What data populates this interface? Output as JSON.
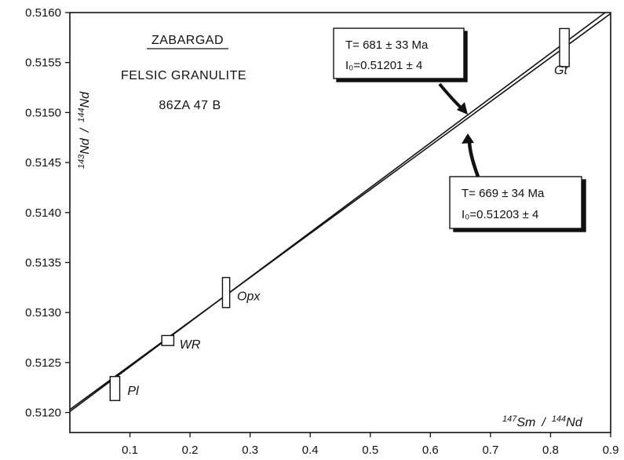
{
  "chart_data": {
    "type": "scatter",
    "title_lines": [
      "ZABARGAD",
      "FELSIC GRANULITE",
      "86ZA 47 B"
    ],
    "xlabel": {
      "iso1": "147",
      "el1": "Sm",
      "sep": "/",
      "iso2": "144",
      "el2": "Nd"
    },
    "ylabel": {
      "iso1": "143",
      "el1": "Nd",
      "sep": "/",
      "iso2": "144",
      "el2": "Nd"
    },
    "xlim": [
      0.0,
      0.9
    ],
    "ylim": [
      0.5118,
      0.516
    ],
    "x_ticks": [
      0.1,
      0.2,
      0.3,
      0.4,
      0.5,
      0.6,
      0.7,
      0.8,
      0.9
    ],
    "x_tick_labels": [
      "0.1",
      "0.2",
      "0.3",
      "0.4",
      "0.5",
      "0.6",
      "0.7",
      "0.8",
      "0.9"
    ],
    "y_ticks": [
      0.512,
      0.5125,
      0.513,
      0.5135,
      0.514,
      0.5145,
      0.515,
      0.5155,
      0.516
    ],
    "y_tick_labels": [
      "0.5120",
      "0.5125",
      "0.5130",
      "0.5135",
      "0.5140",
      "0.5145",
      "0.5150",
      "0.5155",
      "0.5160"
    ],
    "points": [
      {
        "label": "Pl",
        "x": 0.075,
        "y": 0.51224,
        "dx": 0.008,
        "dy": 0.00012
      },
      {
        "label": "WR",
        "x": 0.163,
        "y": 0.51272,
        "dx": 0.01,
        "dy": 5e-05
      },
      {
        "label": "Opx",
        "x": 0.26,
        "y": 0.5132,
        "dx": 0.006,
        "dy": 0.00015
      },
      {
        "label": "Gt",
        "x": 0.823,
        "y": 0.51565,
        "dx": 0.008,
        "dy": 0.00019
      }
    ],
    "isochrons": [
      {
        "label_lines": [
          "T= 681 ± 33 Ma",
          "I₀=0.51201 ± 4"
        ],
        "intercept": 0.51201,
        "slope": 0.004479
      },
      {
        "label_lines": [
          "T= 669 ± 34 Ma",
          "I₀=0.51203 ± 4"
        ],
        "intercept": 0.51203,
        "slope": 0.0044
      }
    ]
  }
}
